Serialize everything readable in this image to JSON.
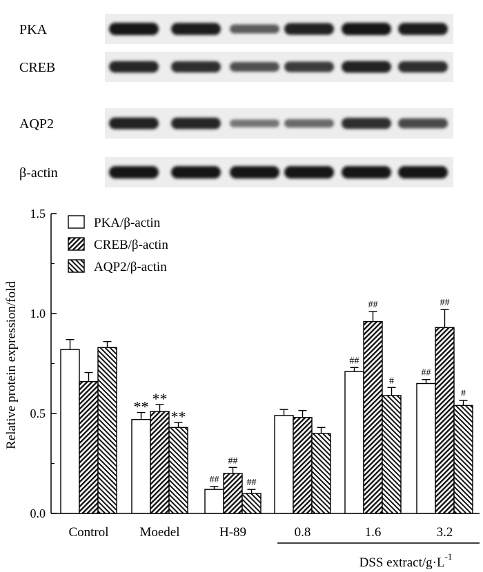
{
  "blot": {
    "rows": [
      {
        "label": "PKA",
        "intensity": [
          1.0,
          0.95,
          0.45,
          0.9,
          1.0,
          0.95
        ]
      },
      {
        "label": "CREB",
        "intensity": [
          0.85,
          0.8,
          0.55,
          0.7,
          0.9,
          0.8
        ]
      },
      {
        "label": "AQP2",
        "intensity": [
          0.9,
          0.85,
          0.25,
          0.35,
          0.8,
          0.6
        ]
      },
      {
        "label": "β-actin",
        "intensity": [
          1.0,
          1.0,
          1.0,
          1.0,
          1.0,
          1.0
        ]
      }
    ]
  },
  "chart_data": {
    "type": "bar",
    "categories": [
      "Control",
      "Moedel",
      "H-89",
      "0.8",
      "1.6",
      "3.2"
    ],
    "series": [
      {
        "name": "PKA/β-actin",
        "pattern": "white",
        "values": [
          0.82,
          0.47,
          0.12,
          0.49,
          0.71,
          0.65
        ],
        "errors": [
          0.05,
          0.035,
          0.015,
          0.03,
          0.02,
          0.02
        ],
        "annotations": [
          "",
          "**",
          "##",
          "",
          "##",
          "##"
        ]
      },
      {
        "name": "CREB/β-actin",
        "pattern": "hatch-forward",
        "values": [
          0.66,
          0.51,
          0.2,
          0.48,
          0.96,
          0.93
        ],
        "errors": [
          0.045,
          0.035,
          0.03,
          0.035,
          0.05,
          0.09
        ],
        "annotations": [
          "",
          "**",
          "##",
          "",
          "##",
          "##"
        ]
      },
      {
        "name": "AQP2/β-actin",
        "pattern": "hatch-backward",
        "values": [
          0.83,
          0.43,
          0.1,
          0.4,
          0.59,
          0.54
        ],
        "errors": [
          0.03,
          0.025,
          0.02,
          0.03,
          0.04,
          0.025
        ],
        "annotations": [
          "",
          "**",
          "##",
          "",
          "#",
          "#"
        ]
      }
    ],
    "ylabel": "Relative protein expression/fold",
    "xlabel": "",
    "ylim": [
      0,
      1.5
    ],
    "yticks": [
      "0.0",
      "0.5",
      "1.0",
      "1.5"
    ],
    "group_label": {
      "text": "DSS extract/g·L",
      "superscript": "-1",
      "spans": [
        "0.8",
        "1.6",
        "3.2"
      ]
    },
    "legend_position": "top-left",
    "grid": false
  }
}
